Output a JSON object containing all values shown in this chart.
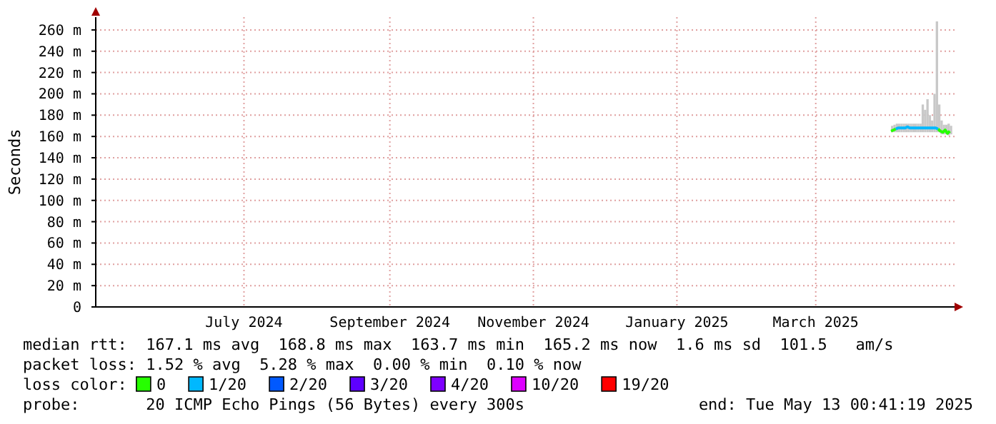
{
  "chart_data": {
    "type": "line",
    "ylabel": "Seconds",
    "legend_title": "loss color:",
    "legend": "bottom",
    "grid": true,
    "x": [
      "2025-04-16",
      "2025-04-17",
      "2025-04-18",
      "2025-04-19",
      "2025-04-20",
      "2025-04-21",
      "2025-04-22",
      "2025-04-23",
      "2025-04-24",
      "2025-04-25",
      "2025-04-26",
      "2025-04-27",
      "2025-04-28",
      "2025-04-29",
      "2025-04-30",
      "2025-05-01",
      "2025-05-02",
      "2025-05-03",
      "2025-05-04",
      "2025-05-05",
      "2025-05-06",
      "2025-05-07",
      "2025-05-08",
      "2025-05-09",
      "2025-05-10",
      "2025-05-11"
    ],
    "xlim": [
      "2024-05-13",
      "2025-05-13"
    ],
    "xticks": [
      {
        "value": "2024-07-15",
        "label": "July 2024"
      },
      {
        "value": "2024-09-15",
        "label": "September 2024"
      },
      {
        "value": "2024-11-15",
        "label": "November 2024"
      },
      {
        "value": "2025-01-15",
        "label": "January 2025"
      },
      {
        "value": "2025-03-15",
        "label": "March 2025"
      }
    ],
    "ylim": [
      0,
      272
    ],
    "yticks": [
      0,
      {
        "value": 20,
        "label": "20 m"
      },
      {
        "value": 40,
        "label": "40 m"
      },
      {
        "value": 60,
        "label": "60 m"
      },
      {
        "value": 80,
        "label": "80 m"
      },
      {
        "value": 100,
        "label": "100 m"
      },
      {
        "value": 120,
        "label": "120 m"
      },
      {
        "value": 140,
        "label": "140 m"
      },
      {
        "value": 160,
        "label": "160 m"
      },
      {
        "value": 180,
        "label": "180 m"
      },
      {
        "value": 200,
        "label": "200 m"
      },
      {
        "value": 220,
        "label": "220 m"
      },
      {
        "value": 240,
        "label": "240 m"
      },
      {
        "value": 260,
        "label": "260 m"
      }
    ],
    "series": [
      {
        "type": "bar",
        "color": "#c8c8c8",
        "base": [
          164,
          164,
          164,
          164,
          164,
          164,
          164,
          164,
          164,
          164,
          164,
          164,
          164,
          164,
          164,
          164,
          164,
          164,
          164,
          164,
          164,
          162,
          162,
          162,
          161,
          162
        ],
        "values": [
          6,
          7,
          8,
          8,
          8,
          8,
          8,
          8,
          8,
          8,
          8,
          8,
          8,
          26,
          21,
          31,
          16,
          11,
          36,
          104,
          26,
          13,
          9,
          9,
          11,
          8
        ]
      },
      {
        "name": "0",
        "color": "#26ff00",
        "values": [
          165,
          166,
          167,
          null,
          null,
          null,
          null,
          null,
          null,
          null,
          null,
          null,
          null,
          null,
          null,
          null,
          null,
          null,
          null,
          null,
          167,
          165,
          164,
          166,
          163,
          165
        ]
      },
      {
        "name": "1/20",
        "color": "#00b8ff",
        "values": [
          null,
          null,
          167,
          168,
          168,
          168,
          168,
          169,
          168,
          168,
          168,
          168,
          168,
          168,
          168,
          168,
          168,
          168,
          168,
          168,
          167,
          null,
          null,
          null,
          null,
          null
        ]
      },
      {
        "name": "2/20",
        "color": "#0059ff",
        "values": [
          null,
          null,
          null,
          null,
          null,
          null,
          null,
          null,
          null,
          null,
          null,
          null,
          null,
          null,
          null,
          null,
          null,
          null,
          null,
          null,
          null,
          null,
          null,
          null,
          null,
          null
        ]
      },
      {
        "name": "3/20",
        "color": "#5e00ff",
        "values": [
          null,
          null,
          null,
          null,
          null,
          null,
          null,
          null,
          null,
          null,
          null,
          null,
          null,
          null,
          null,
          null,
          null,
          null,
          null,
          null,
          null,
          null,
          null,
          null,
          null,
          null
        ]
      },
      {
        "name": "4/20",
        "color": "#7e00ff",
        "values": [
          null,
          null,
          null,
          null,
          null,
          null,
          null,
          null,
          null,
          null,
          null,
          null,
          null,
          null,
          null,
          null,
          null,
          null,
          null,
          null,
          null,
          null,
          null,
          null,
          null,
          null
        ]
      },
      {
        "name": "10/20",
        "color": "#dd00ff",
        "values": [
          null,
          null,
          null,
          null,
          null,
          null,
          null,
          null,
          null,
          null,
          null,
          null,
          null,
          null,
          null,
          null,
          null,
          null,
          null,
          null,
          null,
          null,
          null,
          null,
          null,
          null
        ]
      },
      {
        "name": "19/20",
        "color": "#ff0000",
        "values": [
          null,
          null,
          null,
          null,
          null,
          null,
          null,
          null,
          null,
          null,
          null,
          null,
          null,
          null,
          null,
          null,
          null,
          null,
          null,
          null,
          null,
          null,
          null,
          null,
          null,
          null
        ]
      }
    ],
    "annotations": [
      "median rtt:  167.1 ms avg  168.8 ms max  163.7 ms min  165.2 ms now  1.6 ms sd  101.5   am/s",
      "packet loss: 1.52 % avg  5.28 % max  0.00 % min  0.10 % now",
      "probe:       20 ICMP Echo Pings (56 Bytes) every 300s",
      "end: Tue May 13 00:41:19 2025"
    ]
  }
}
